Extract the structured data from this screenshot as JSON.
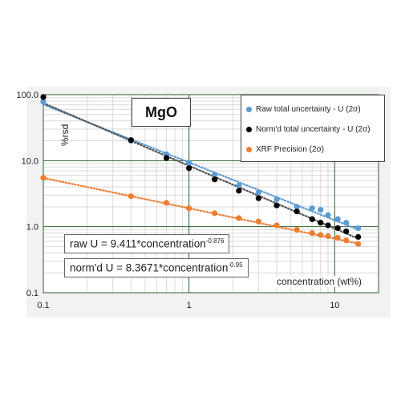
{
  "chart_data": {
    "type": "scatter",
    "title": "MgO",
    "xlabel": "concentration (wt%)",
    "ylabel": "%rsd",
    "x_scale": "log",
    "y_scale": "log",
    "xlim": [
      0.1,
      20
    ],
    "ylim": [
      0.1,
      100
    ],
    "x_ticks": [
      "0.1",
      "1",
      "10"
    ],
    "y_ticks": [
      "100.0",
      "10.0",
      "1.0",
      "0.1"
    ],
    "grid": true,
    "legend_position": "top-right",
    "series": [
      {
        "name": "Raw total uncertainty - U (2σ)",
        "color": "#5b9bd5",
        "x": [
          0.1,
          0.4,
          0.7,
          1.0,
          1.5,
          2.2,
          3.0,
          4.0,
          5.5,
          7.0,
          8.0,
          9.0,
          10.5,
          12.0,
          14.5
        ],
        "y": [
          78,
          20,
          12.5,
          9.2,
          6.1,
          4.2,
          3.3,
          2.6,
          2.0,
          1.9,
          1.8,
          1.5,
          1.3,
          1.15,
          0.95
        ]
      },
      {
        "name": "Norm'd total uncertainty - U (2σ)",
        "color": "#000000",
        "x": [
          0.1,
          0.4,
          0.7,
          1.0,
          1.5,
          2.2,
          3.0,
          4.0,
          5.5,
          7.0,
          8.0,
          9.0,
          10.5,
          12.0,
          14.5
        ],
        "y": [
          92,
          20.5,
          11,
          7.7,
          5.2,
          3.5,
          2.7,
          2.1,
          1.7,
          1.3,
          1.15,
          1.05,
          0.95,
          0.85,
          0.7
        ]
      },
      {
        "name": "XRF Precision (2σ)",
        "color": "#ed7d31",
        "x": [
          0.1,
          0.4,
          0.7,
          1.0,
          1.5,
          2.2,
          3.0,
          4.0,
          5.5,
          7.0,
          8.0,
          9.0,
          10.5,
          12.0,
          14.5
        ],
        "y": [
          5.5,
          2.9,
          2.3,
          1.9,
          1.6,
          1.35,
          1.2,
          1.05,
          0.9,
          0.8,
          0.75,
          0.72,
          0.68,
          0.62,
          0.55
        ]
      }
    ],
    "trendlines": [
      {
        "series": "Raw total uncertainty - U (2σ)",
        "a": 9.411,
        "b": -0.876,
        "style": "dotted",
        "color": "#5b9bd5"
      },
      {
        "series": "Norm'd total uncertainty - U (2σ)",
        "a": 8.3671,
        "b": -0.95,
        "style": "dotted",
        "color": "#555555"
      },
      {
        "series": "XRF Precision (2σ)",
        "a": 1.9,
        "b": -0.46,
        "style": "dotted",
        "color": "#ed7d31"
      }
    ],
    "annotations": {
      "raw_eq": {
        "prefix": "raw U = 9.411*concentration",
        "exponent": "-0.876"
      },
      "norm_eq": {
        "prefix": "norm'd U = 8.3671*concentration",
        "exponent": "-0.95"
      }
    }
  }
}
